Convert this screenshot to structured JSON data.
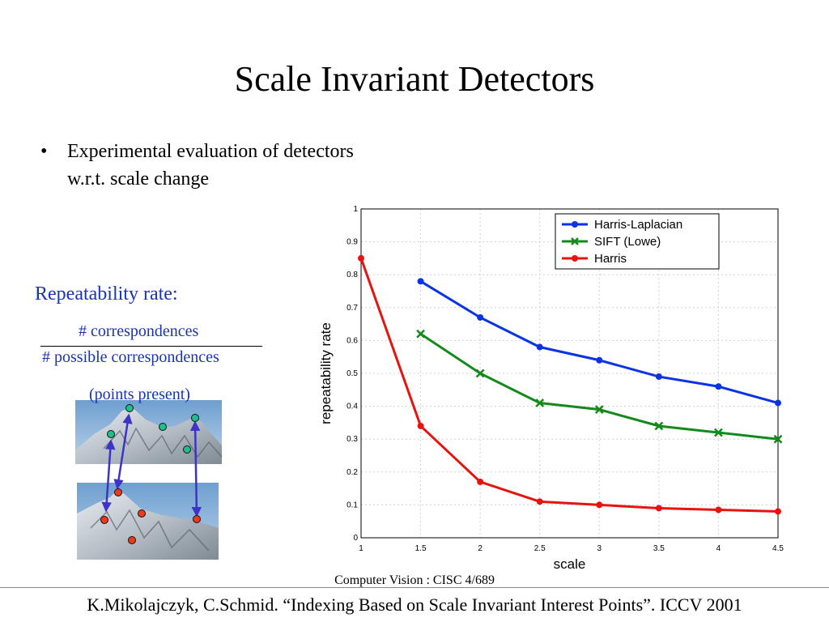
{
  "slide": {
    "title": "Scale Invariant Detectors",
    "bullet_symbol": "•",
    "bullet_line1": "Experimental evaluation of detectors",
    "bullet_line2": "w.r.t. scale change",
    "repeatability_label": "Repeatability rate:",
    "numerator": "# correspondences",
    "denominator": "# possible correspondences",
    "points_note": "(points present)",
    "course": "Computer Vision : CISC 4/689",
    "citation": "K.Mikolajczyk, C.Schmid. “Indexing Based on Scale Invariant Interest Points”. ICCV 2001"
  },
  "colors": {
    "accent_text": "#1a33b3",
    "harris_laplacian": "#0a32e6",
    "sift": "#138a1b",
    "harris": "#e6140f",
    "upper_points": "#1dbf8a",
    "lower_points": "#ee3a1b",
    "match_arrows": "#3d33c8"
  },
  "chart_data": {
    "type": "line",
    "xlabel": "scale",
    "ylabel": "repeatability rate",
    "xlim": [
      1,
      4.5
    ],
    "ylim": [
      0,
      1
    ],
    "xticks": [
      "1",
      "1.5",
      "2",
      "2.5",
      "3",
      "3.5",
      "4",
      "4.5"
    ],
    "yticks": [
      "0",
      "0.1",
      "0.2",
      "0.3",
      "0.4",
      "0.5",
      "0.6",
      "0.7",
      "0.8",
      "0.9",
      "1"
    ],
    "grid": true,
    "legend_position": "top-right",
    "series": [
      {
        "name": "Harris-Laplacian",
        "marker": "circle",
        "color": "#0a32e6",
        "x": [
          1.5,
          2,
          2.5,
          3,
          3.5,
          4,
          4.5
        ],
        "y": [
          0.78,
          0.67,
          0.58,
          0.54,
          0.49,
          0.46,
          0.41
        ]
      },
      {
        "name": "SIFT (Lowe)",
        "marker": "x",
        "color": "#138a1b",
        "x": [
          1.5,
          2,
          2.5,
          3,
          3.5,
          4,
          4.5
        ],
        "y": [
          0.62,
          0.5,
          0.41,
          0.39,
          0.34,
          0.32,
          0.3
        ]
      },
      {
        "name": "Harris",
        "marker": "circle",
        "color": "#e6140f",
        "x": [
          1,
          1.5,
          2,
          2.5,
          3,
          3.5,
          4,
          4.5
        ],
        "y": [
          0.85,
          0.34,
          0.17,
          0.11,
          0.1,
          0.09,
          0.085,
          0.08
        ]
      }
    ]
  }
}
